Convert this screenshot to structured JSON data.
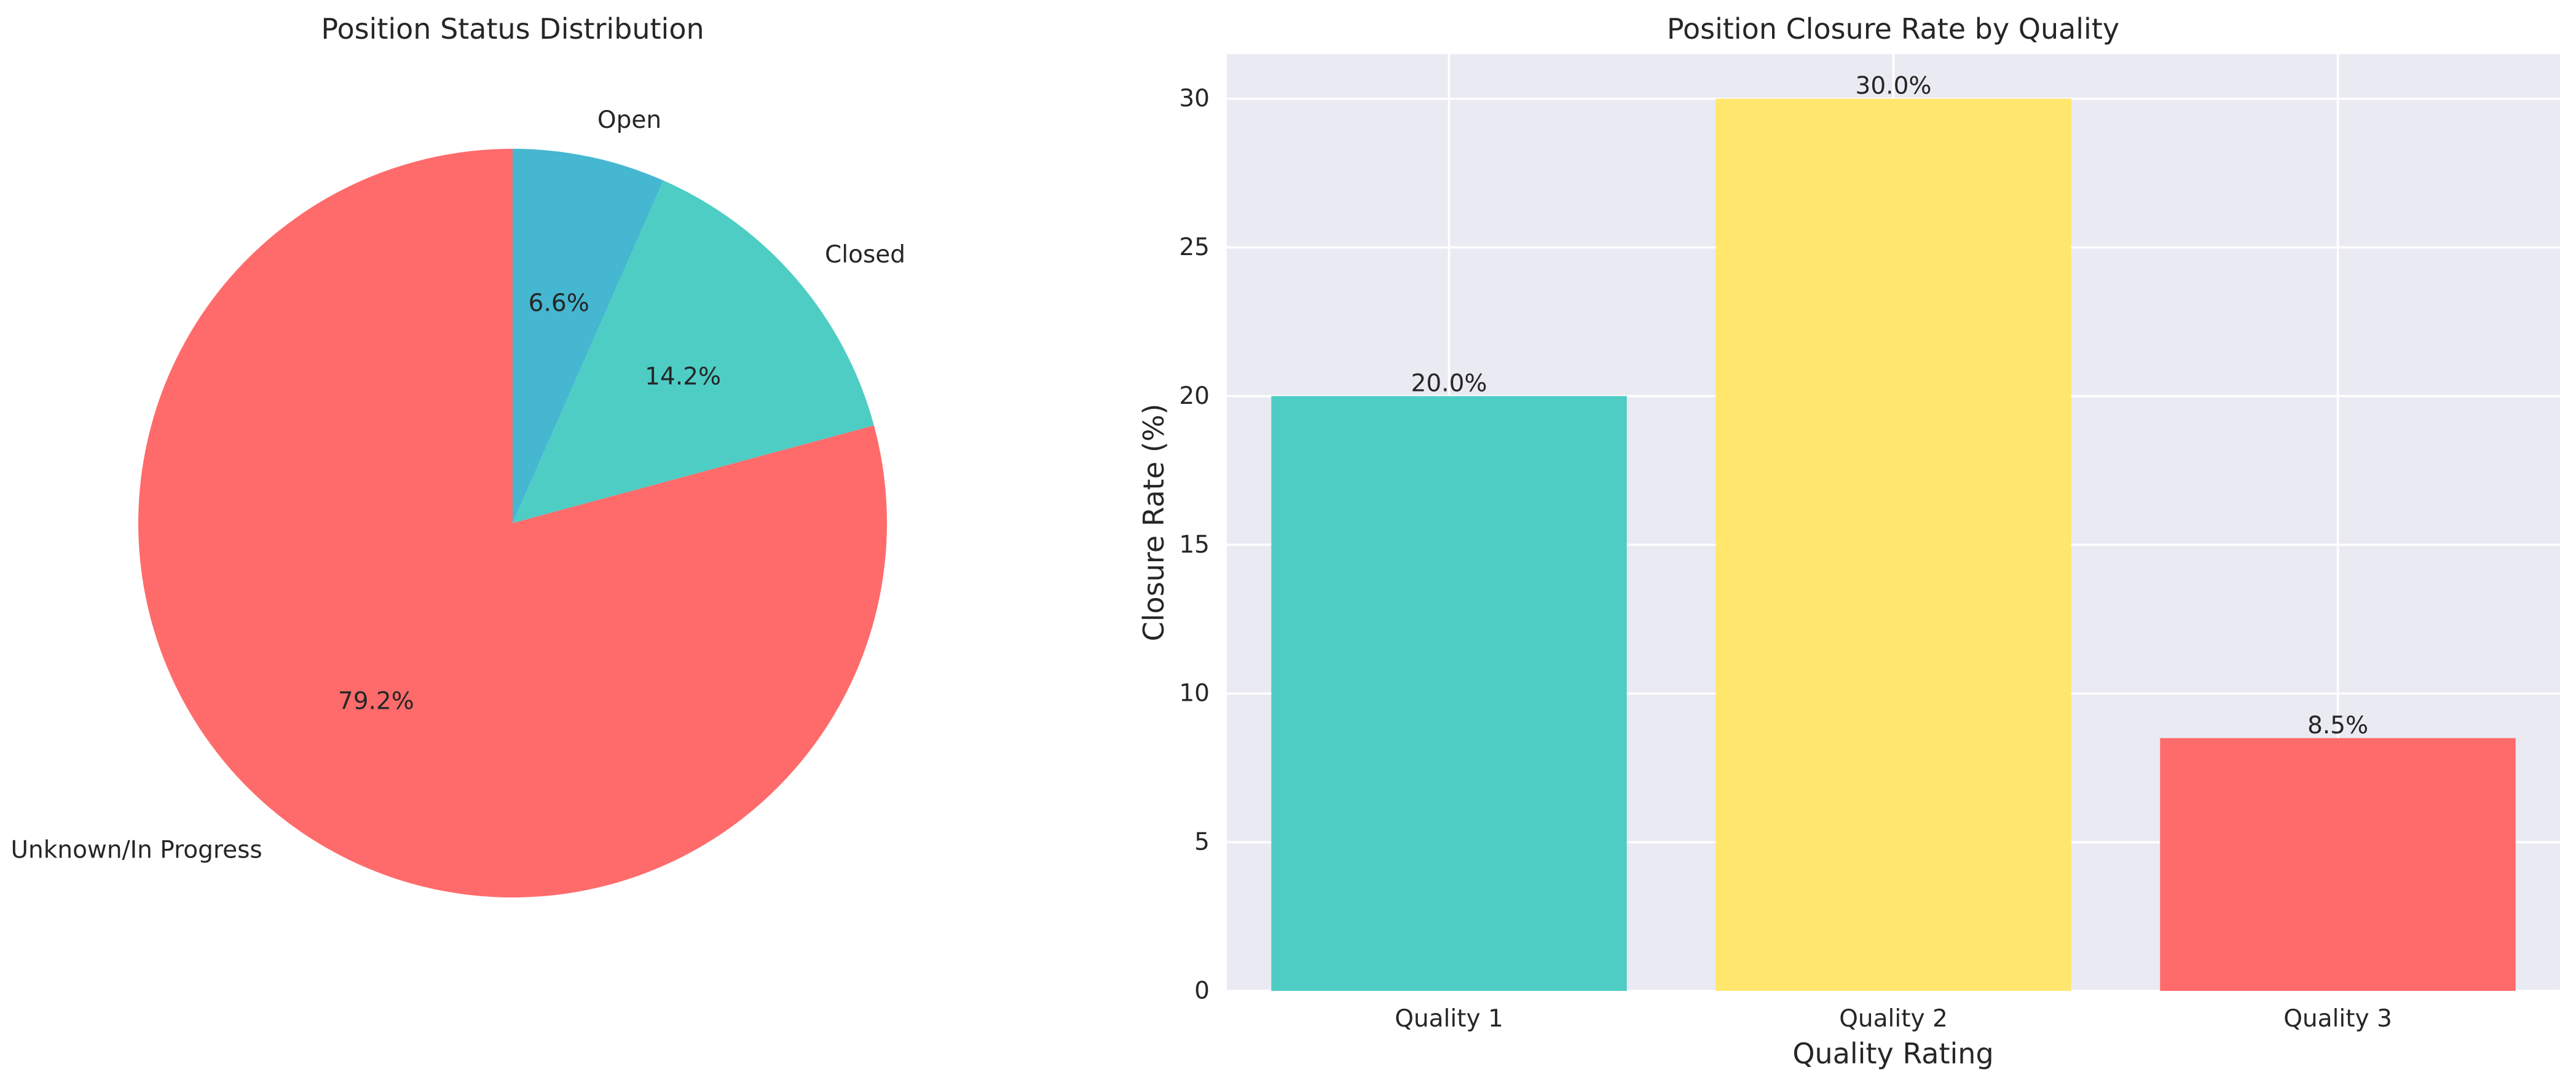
{
  "chart_data": [
    {
      "type": "pie",
      "title": "Position Status Distribution",
      "slices": [
        {
          "label": "Open",
          "value": 6.6,
          "pct_label": "6.6%",
          "color": "#45B7D1"
        },
        {
          "label": "Closed",
          "value": 14.2,
          "pct_label": "14.2%",
          "color": "#4ECDC4"
        },
        {
          "label": "Unknown/In Progress",
          "value": 79.2,
          "pct_label": "79.2%",
          "color": "#FF6B6B"
        }
      ],
      "start_angle_deg": 90,
      "direction": "counterclockwise-reversed"
    },
    {
      "type": "bar",
      "title": "Position Closure Rate by Quality",
      "categories": [
        "Quality 1",
        "Quality 2",
        "Quality 3"
      ],
      "values": [
        20.0,
        30.0,
        8.5
      ],
      "value_labels": [
        "20.0%",
        "30.0%",
        "8.5%"
      ],
      "colors": [
        "#4ECDC4",
        "#FFE66D",
        "#FF6B6B"
      ],
      "xlabel": "Quality Rating",
      "ylabel": "Closure Rate (%)",
      "ylim": [
        0,
        31.5
      ],
      "yticks": [
        0,
        5,
        10,
        15,
        20,
        25,
        30
      ],
      "grid": true,
      "background": "#EAEAF2"
    }
  ]
}
